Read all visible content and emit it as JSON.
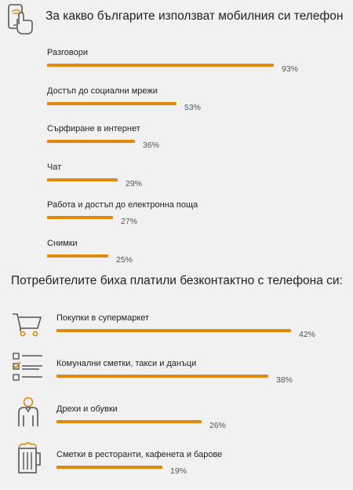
{
  "accent_color": "#e0890f",
  "section1": {
    "title": "За какво българите използват мобилния си телефон",
    "icon": "phone-tap-icon",
    "chart_data": {
      "type": "bar",
      "orientation": "horizontal",
      "categories": [
        "Разговори",
        "Достъп до социални мрежи",
        "Сърфиране в интернет",
        "Чат",
        "Работа и достъп до електронна поща",
        "Снимки"
      ],
      "values": [
        93,
        53,
        36,
        29,
        27,
        25
      ],
      "value_labels": [
        "93%",
        "53%",
        "36%",
        "29%",
        "27%",
        "25%"
      ],
      "ylim": [
        0,
        100
      ],
      "grid": false
    }
  },
  "section2": {
    "title": "Потребителите биха платили безконтактно с телефона си:",
    "chart_data": {
      "type": "bar",
      "orientation": "horizontal",
      "categories": [
        "Покупки в супермаркет",
        "Комунални сметки, такси и данъци",
        "Дрехи и обувки",
        "Сметки в ресторанти, кафенета и барове"
      ],
      "values": [
        42,
        38,
        26,
        19
      ],
      "value_labels": [
        "42%",
        "38%",
        "26%",
        "19%"
      ],
      "icons": [
        "shopping-cart-icon",
        "checklist-icon",
        "clothing-icon",
        "beer-mug-icon"
      ],
      "xlim": [
        0,
        45
      ],
      "grid": false
    }
  }
}
